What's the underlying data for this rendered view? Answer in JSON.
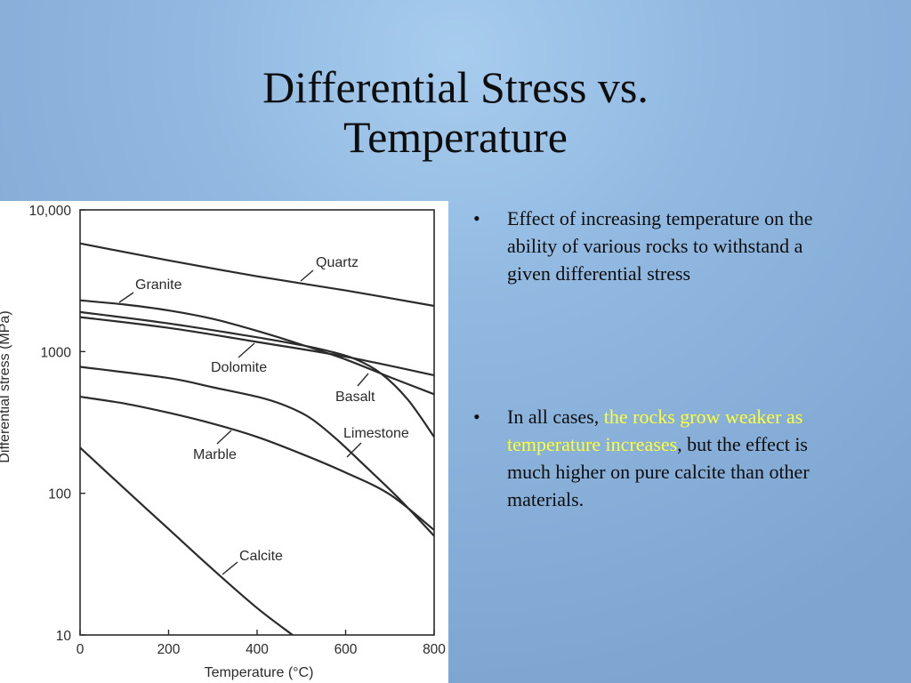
{
  "slide": {
    "title_line1": "Differential Stress vs.",
    "title_line2": "Temperature",
    "bullets": [
      {
        "text": "Effect of increasing temperature on the ability of various rocks to withstand a given differential stress"
      },
      {
        "before": "In all cases, ",
        "highlight": "the rocks grow weaker as temperature increases",
        "after": ", but the effect is much higher on pure calcite than other materials."
      }
    ],
    "bullet_char": "•",
    "highlight_color": "#ffff33"
  },
  "chart_data": {
    "type": "line",
    "xlabel": "Temperature (°C)",
    "ylabel": "Differential stress (MPa)",
    "xlim": [
      0,
      800
    ],
    "ylim": [
      10,
      10000
    ],
    "yscale": "log",
    "x_ticks": [
      0,
      200,
      400,
      600,
      800
    ],
    "x_tick_labels": [
      "0",
      "200",
      "400",
      "600",
      "800"
    ],
    "y_ticks": [
      10,
      100,
      1000,
      10000
    ],
    "y_tick_labels": [
      "10",
      "100",
      "1000",
      "10,000"
    ],
    "grid": false,
    "series": [
      {
        "name": "Quartz",
        "points": [
          [
            0,
            5800
          ],
          [
            200,
            4400
          ],
          [
            400,
            3400
          ],
          [
            600,
            2700
          ],
          [
            800,
            2100
          ]
        ]
      },
      {
        "name": "Granite",
        "points": [
          [
            0,
            2300
          ],
          [
            100,
            2150
          ],
          [
            200,
            1950
          ],
          [
            300,
            1700
          ],
          [
            400,
            1400
          ],
          [
            500,
            1120
          ],
          [
            600,
            880
          ],
          [
            700,
            660
          ],
          [
            800,
            500
          ]
        ]
      },
      {
        "name": "Dolomite",
        "points": [
          [
            0,
            1750
          ],
          [
            200,
            1470
          ],
          [
            400,
            1170
          ],
          [
            600,
            920
          ],
          [
            800,
            680
          ]
        ]
      },
      {
        "name": "Basalt",
        "points": [
          [
            0,
            1900
          ],
          [
            200,
            1580
          ],
          [
            400,
            1260
          ],
          [
            500,
            1110
          ],
          [
            560,
            1010
          ],
          [
            620,
            890
          ],
          [
            680,
            700
          ],
          [
            740,
            460
          ],
          [
            800,
            250
          ]
        ]
      },
      {
        "name": "Limestone",
        "points": [
          [
            0,
            780
          ],
          [
            200,
            650
          ],
          [
            300,
            560
          ],
          [
            400,
            480
          ],
          [
            460,
            420
          ],
          [
            520,
            340
          ],
          [
            580,
            240
          ],
          [
            640,
            160
          ],
          [
            720,
            92
          ],
          [
            800,
            50
          ]
        ]
      },
      {
        "name": "Marble",
        "points": [
          [
            0,
            480
          ],
          [
            100,
            430
          ],
          [
            200,
            370
          ],
          [
            300,
            310
          ],
          [
            400,
            250
          ],
          [
            500,
            190
          ],
          [
            600,
            140
          ],
          [
            700,
            98
          ],
          [
            800,
            55
          ]
        ]
      },
      {
        "name": "Calcite",
        "points": [
          [
            0,
            210
          ],
          [
            100,
            108
          ],
          [
            200,
            56
          ],
          [
            300,
            29
          ],
          [
            400,
            15.5
          ],
          [
            480,
            10
          ]
        ]
      }
    ],
    "annotations": [
      {
        "series": "Quartz",
        "label": "Quartz"
      },
      {
        "series": "Granite",
        "label": "Granite"
      },
      {
        "series": "Dolomite",
        "label": "Dolomite"
      },
      {
        "series": "Basalt",
        "label": "Basalt"
      },
      {
        "series": "Limestone",
        "label": "Limestone"
      },
      {
        "series": "Marble",
        "label": "Marble"
      },
      {
        "series": "Calcite",
        "label": "Calcite"
      }
    ]
  }
}
